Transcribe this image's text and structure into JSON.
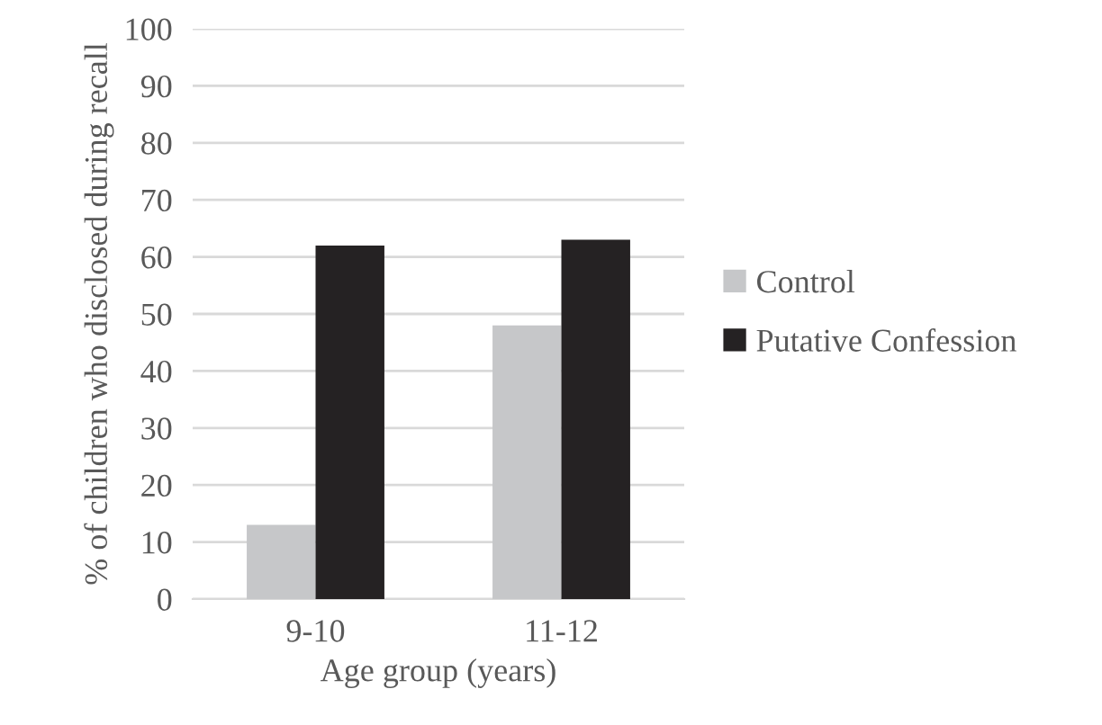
{
  "chart_data": {
    "type": "bar",
    "xlabel": "Age group (years)",
    "ylabel": "% of children who disclosed during recall",
    "categories": [
      "9-10",
      "11-12"
    ],
    "series": [
      {
        "name": "Control",
        "color": "#c6c7c9",
        "values": [
          13,
          48
        ]
      },
      {
        "name": "Putative Confession",
        "color": "#252223",
        "values": [
          62,
          63
        ]
      }
    ],
    "ylim": [
      0,
      100
    ],
    "yticks": [
      0,
      10,
      20,
      30,
      40,
      50,
      60,
      70,
      80,
      90,
      100
    ],
    "grid": "y",
    "legend": "right"
  }
}
